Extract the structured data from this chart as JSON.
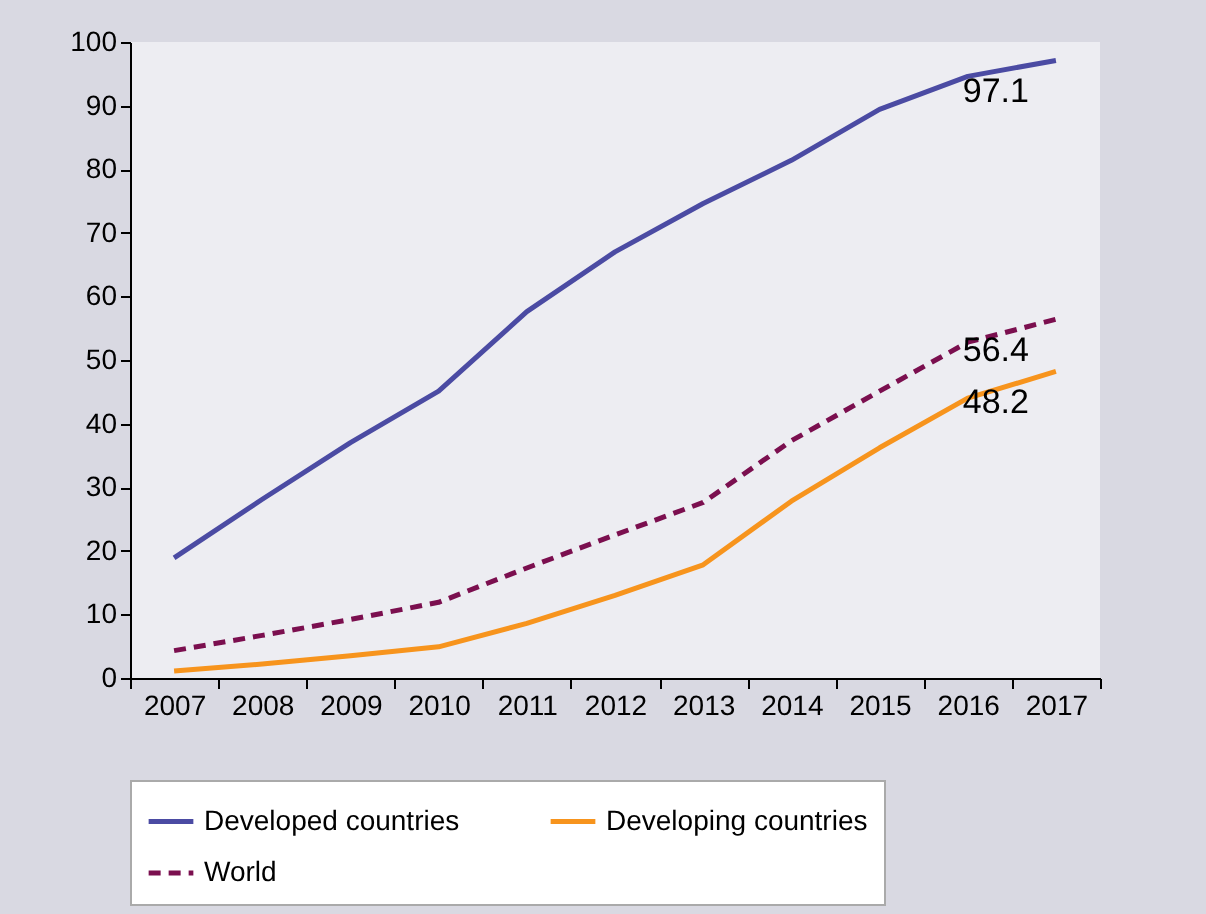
{
  "chart_data": {
    "type": "line",
    "categories": [
      "2007",
      "2008",
      "2009",
      "2010",
      "2011",
      "2012",
      "2013",
      "2014",
      "2015",
      "2016",
      "2017"
    ],
    "series": [
      {
        "name": "Developed countries",
        "color": "#4b4ba3",
        "values": [
          18.9,
          28.1,
          37,
          45.1,
          57.6,
          67,
          74.6,
          81.4,
          89.4,
          94.6,
          97.1
        ],
        "value_labels": [
          null,
          null,
          null,
          null,
          null,
          null,
          null,
          null,
          null,
          null,
          "97.1"
        ]
      },
      {
        "name": "Developing countries",
        "color": "#f7941d",
        "values": [
          1.1,
          2.2,
          3.5,
          4.9,
          8.6,
          13,
          17.8,
          27.8,
          36.2,
          44,
          48.2
        ],
        "value_labels": [
          null,
          null,
          null,
          null,
          null,
          null,
          null,
          null,
          null,
          null,
          "48.2"
        ]
      },
      {
        "name": "World",
        "color": "#7b0f4f",
        "line_style": "dashed",
        "values": [
          4.3,
          6.7,
          9.2,
          11.9,
          17.3,
          22.5,
          27.6,
          37.3,
          45.1,
          52.8,
          56.4
        ],
        "value_labels": [
          null,
          null,
          null,
          null,
          null,
          null,
          null,
          null,
          null,
          null,
          "56.4"
        ]
      }
    ],
    "ylim": [
      0,
      100
    ],
    "yticks": [
      0,
      10,
      20,
      30,
      40,
      50,
      60,
      70,
      80,
      90,
      100
    ],
    "grid": false,
    "legend": "bottom",
    "marker": "none"
  }
}
